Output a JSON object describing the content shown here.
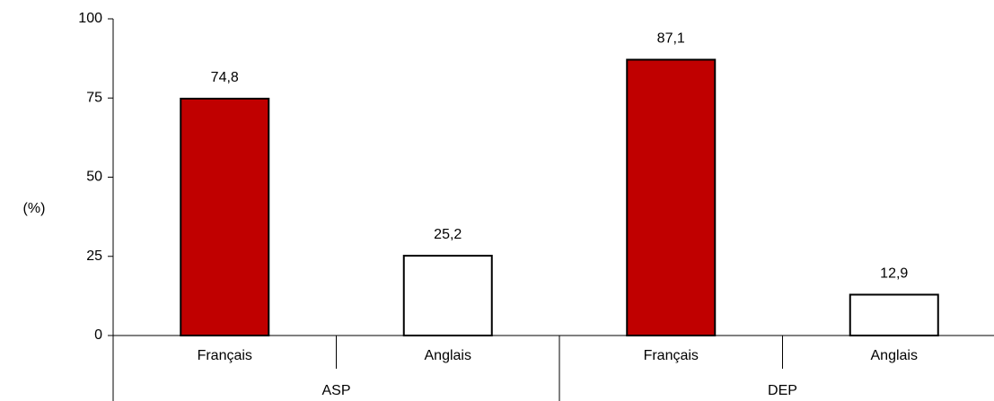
{
  "chart_data": {
    "type": "bar",
    "title": "",
    "ylabel": "(%)",
    "xlabel": "",
    "ylim": [
      0,
      100
    ],
    "yticks": [
      0,
      25,
      50,
      75,
      100
    ],
    "grid": false,
    "legend": "none",
    "groups": [
      {
        "name": "ASP",
        "bars": [
          {
            "category": "Français",
            "value": 74.8,
            "label": "74,8",
            "fill": "#c00000"
          },
          {
            "category": "Anglais",
            "value": 25.2,
            "label": "25,2",
            "fill": "#ffffff"
          }
        ]
      },
      {
        "name": "DEP",
        "bars": [
          {
            "category": "Français",
            "value": 87.1,
            "label": "87,1",
            "fill": "#c00000"
          },
          {
            "category": "Anglais",
            "value": 12.9,
            "label": "12,9",
            "fill": "#ffffff"
          }
        ]
      }
    ]
  }
}
